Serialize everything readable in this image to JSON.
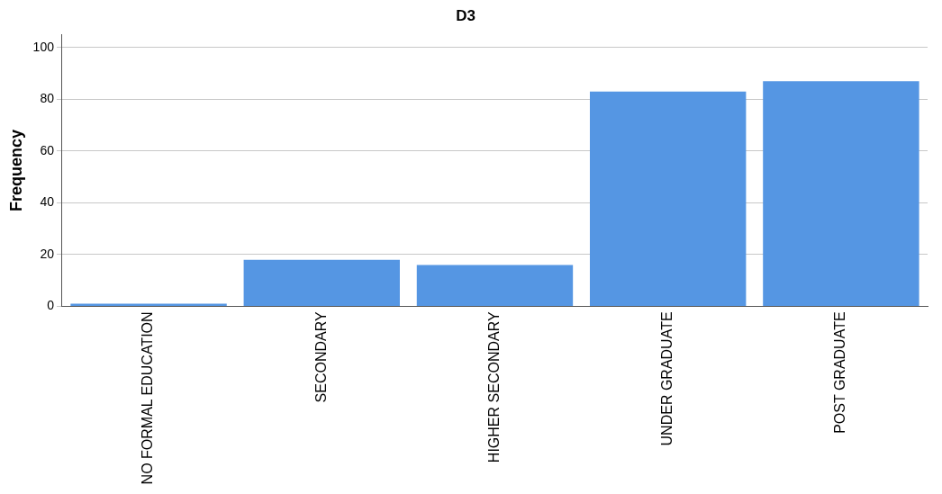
{
  "chart_data": {
    "type": "bar",
    "title": "D3",
    "ylabel": "Frequency",
    "categories": [
      "NO FORMAL EDUCATION",
      "SECONDARY",
      "HIGHER SECONDARY",
      "UNDER GRADUATE",
      "POST GRADUATE"
    ],
    "values": [
      1,
      18,
      16,
      83,
      87
    ],
    "color": "#5596e3",
    "ylim": [
      0,
      105
    ],
    "yticks": [
      0,
      20,
      40,
      60,
      80,
      100
    ],
    "grid": "y",
    "legend": false
  }
}
